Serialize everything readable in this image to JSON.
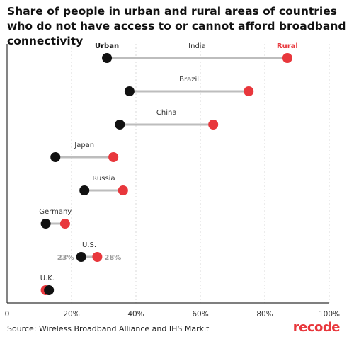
{
  "title": "Share of people in urban and rural areas of countries who do not have access to or cannot afford broadband connectivity",
  "source": "Source: Wireless Broadband Alliance and IHS Markit",
  "brand": "recode",
  "colors": {
    "urban": "#111111",
    "rural": "#e8373c",
    "connector": "#bdbdbd",
    "brand": "#e8373c",
    "grid": "#d9d9d9",
    "axis": "#333333",
    "label": "#333333",
    "value_label": "#9a9a9a"
  },
  "chart_data": {
    "type": "dumbbell",
    "title": "Share of people in urban and rural areas of countries who do not have access to or cannot afford broadband connectivity",
    "xlim": [
      0,
      100
    ],
    "x_ticks": [
      "0",
      "20%",
      "40%",
      "60%",
      "80%",
      "100%"
    ],
    "x_tick_values": [
      0,
      20,
      40,
      60,
      80,
      100
    ],
    "grid": "vertical dashed",
    "series": [
      {
        "name": "Urban",
        "color": "#111111"
      },
      {
        "name": "Rural",
        "color": "#e8373c"
      }
    ],
    "categories": [
      "India",
      "Brazil",
      "China",
      "Japan",
      "Russia",
      "Germany",
      "U.S.",
      "U.K."
    ],
    "urban": [
      31,
      38,
      35,
      15,
      24,
      12,
      23,
      13
    ],
    "rural": [
      87,
      75,
      64,
      33,
      36,
      18,
      28,
      12
    ],
    "annotations": {
      "urban_value": "23%",
      "rural_value": "28%",
      "category": "U.S."
    }
  }
}
